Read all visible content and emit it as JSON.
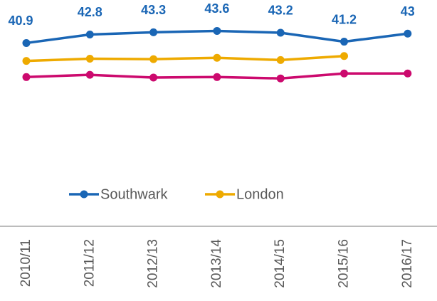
{
  "chart_data": {
    "type": "line",
    "categories": [
      "2010/11",
      "2011/12",
      "2012/13",
      "2013/14",
      "2014/15",
      "2015/16",
      "2016/17"
    ],
    "series": [
      {
        "name": "Southwark",
        "color": "#1a66b5",
        "values": [
          40.9,
          42.8,
          43.3,
          43.6,
          43.2,
          41.2,
          43
        ],
        "data_labels": true,
        "legend": true
      },
      {
        "name": "London",
        "color": "#eeaa00",
        "values": [
          36.9,
          37.4,
          37.3,
          37.6,
          37.1,
          38.0,
          null
        ],
        "data_labels": false,
        "legend": true
      },
      {
        "color": "#cc0a6e",
        "values": [
          33.3,
          33.8,
          33.2,
          33.3,
          33.0,
          34.1,
          34.1
        ],
        "data_labels": false,
        "legend": false
      }
    ],
    "ylim": [
      0,
      50.5
    ]
  }
}
